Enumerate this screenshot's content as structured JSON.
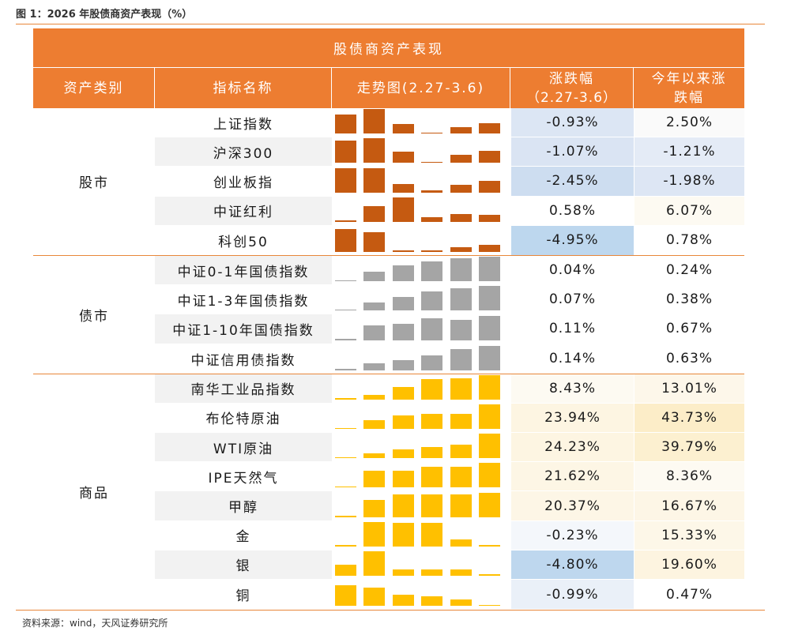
{
  "figure_title": "图 1：2026 年股债商资产表现（%）",
  "table": {
    "banner": "股债商资产表现",
    "headers": {
      "category": "资产类别",
      "indicator": "指标名称",
      "trend": "走势图(2.27-3.6)",
      "change_line1": "涨跌幅",
      "change_line2": "（2.27-3.6）",
      "ytd_line1": "今年以来涨",
      "ytd_line2": "跌幅"
    },
    "groups": [
      {
        "category": "股市",
        "bar_color": "#c55a11",
        "rows": [
          {
            "name": "上证指数",
            "change": "-0.93%",
            "ytd": "2.50%",
            "trend": [
              0.78,
              1.0,
              0.4,
              0.03,
              0.27,
              0.42
            ],
            "change_bg": "#dce6f4",
            "ytd_bg": "#fafafa"
          },
          {
            "name": "沪深300",
            "change": "-1.07%",
            "ytd": "-1.21%",
            "trend": [
              0.9,
              1.0,
              0.45,
              0.04,
              0.35,
              0.5
            ],
            "change_bg": "#dae4f3",
            "ytd_bg": "#e4ebf6"
          },
          {
            "name": "创业板指",
            "change": "-2.45%",
            "ytd": "-1.98%",
            "trend": [
              1.0,
              0.98,
              0.33,
              0.07,
              0.3,
              0.46
            ],
            "change_bg": "#cdddf0",
            "ytd_bg": "#dde6f4"
          },
          {
            "name": "中证红利",
            "change": "0.58%",
            "ytd": "6.07%",
            "trend": [
              0.03,
              0.65,
              1.0,
              0.2,
              0.3,
              0.27
            ],
            "change_bg": "#ffffff",
            "ytd_bg": "#fdfaf2"
          },
          {
            "name": "科创50",
            "change": "-4.95%",
            "ytd": "0.78%",
            "trend": [
              0.95,
              0.8,
              0.05,
              0.02,
              0.2,
              0.3
            ],
            "change_bg": "#bdd7ee",
            "ytd_bg": "#ffffff"
          }
        ]
      },
      {
        "category": "债市",
        "bar_color": "#a5a5a5",
        "rows": [
          {
            "name": "中证0-1年国债指数",
            "change": "0.04%",
            "ytd": "0.24%",
            "trend": [
              0.03,
              0.4,
              0.64,
              0.82,
              0.95,
              1.0
            ],
            "change_bg": "#ffffff",
            "ytd_bg": "#ffffff"
          },
          {
            "name": "中证1-3年国债指数",
            "change": "0.07%",
            "ytd": "0.38%",
            "trend": [
              0.03,
              0.32,
              0.55,
              0.8,
              0.92,
              1.0
            ],
            "change_bg": "#ffffff",
            "ytd_bg": "#ffffff"
          },
          {
            "name": "中证1-10年国债指数",
            "change": "0.11%",
            "ytd": "0.67%",
            "trend": [
              0.03,
              0.6,
              0.65,
              0.9,
              0.82,
              1.0
            ],
            "change_bg": "#ffffff",
            "ytd_bg": "#ffffff"
          },
          {
            "name": "中证信用债指数",
            "change": "0.14%",
            "ytd": "0.63%",
            "trend": [
              0.03,
              0.27,
              0.42,
              0.6,
              0.85,
              1.0
            ],
            "change_bg": "#ffffff",
            "ytd_bg": "#ffffff"
          }
        ]
      },
      {
        "category": "商品",
        "bar_color": "#ffc000",
        "rows": [
          {
            "name": "南华工业品指数",
            "change": "8.43%",
            "ytd": "13.01%",
            "trend": [
              0.03,
              0.2,
              0.5,
              0.82,
              0.86,
              1.0
            ],
            "change_bg": "#fdfaf2",
            "ytd_bg": "#fdf7ea"
          },
          {
            "name": "布伦特原油",
            "change": "23.94%",
            "ytd": "43.73%",
            "trend": [
              0.03,
              0.35,
              0.55,
              0.6,
              0.6,
              1.0
            ],
            "change_bg": "#fdf5e2",
            "ytd_bg": "#fcedc8"
          },
          {
            "name": "WTI原油",
            "change": "24.23%",
            "ytd": "39.79%",
            "trend": [
              0.03,
              0.2,
              0.35,
              0.45,
              0.55,
              1.0
            ],
            "change_bg": "#fdf5e2",
            "ytd_bg": "#fcf0d0"
          },
          {
            "name": "IPE天然气",
            "change": "21.62%",
            "ytd": "8.36%",
            "trend": [
              0.03,
              0.7,
              0.68,
              0.85,
              0.85,
              1.0
            ],
            "change_bg": "#fdf6e5",
            "ytd_bg": "#fdfaf2"
          },
          {
            "name": "甲醇",
            "change": "20.37%",
            "ytd": "16.67%",
            "trend": [
              0.03,
              0.7,
              0.93,
              0.93,
              0.93,
              1.0
            ],
            "change_bg": "#fdf6e6",
            "ytd_bg": "#fdf6e6"
          },
          {
            "name": "金",
            "change": "-0.23%",
            "ytd": "15.33%",
            "trend": [
              0.03,
              1.0,
              0.95,
              0.95,
              0.27,
              0.03
            ],
            "change_bg": "#f4f7fb",
            "ytd_bg": "#fdf7e8"
          },
          {
            "name": "银",
            "change": "-4.80%",
            "ytd": "19.60%",
            "trend": [
              0.45,
              1.0,
              0.27,
              0.27,
              0.27,
              0.05
            ],
            "change_bg": "#bed7ee",
            "ytd_bg": "#fdf4e0"
          },
          {
            "name": "铜",
            "change": "-0.99%",
            "ytd": "0.47%",
            "trend": [
              0.85,
              0.75,
              0.45,
              0.4,
              0.27,
              0.03
            ],
            "change_bg": "#eaf0f8",
            "ytd_bg": "#ffffff"
          }
        ]
      }
    ]
  },
  "source": "资料来源：wind，天风证券研究所"
}
